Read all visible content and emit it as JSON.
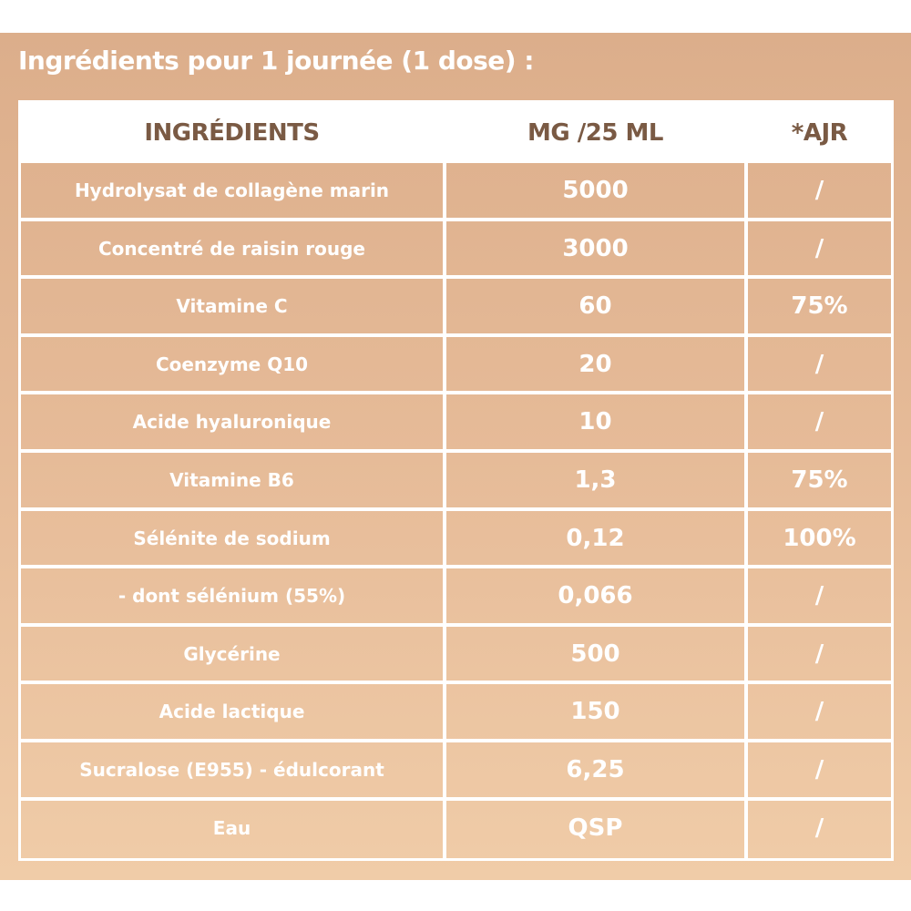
{
  "title": "Ingrédients pour 1 journée (1 dose) :",
  "columns": {
    "ingredient": "INGRÉDIENTS",
    "amount": "MG /25 ML",
    "ajr": "*AJR"
  },
  "rows": [
    {
      "ingredient": "Hydrolysat de collagène marin",
      "amount": "5000",
      "ajr": "/"
    },
    {
      "ingredient": "Concentré de raisin rouge",
      "amount": "3000",
      "ajr": "/"
    },
    {
      "ingredient": "Vitamine C",
      "amount": "60",
      "ajr": "75%"
    },
    {
      "ingredient": "Coenzyme Q10",
      "amount": "20",
      "ajr": "/"
    },
    {
      "ingredient": "Acide hyaluronique",
      "amount": "10",
      "ajr": "/"
    },
    {
      "ingredient": "Vitamine B6",
      "amount": "1,3",
      "ajr": "75%"
    },
    {
      "ingredient": "Sélénite de sodium",
      "amount": "0,12",
      "ajr": "100%"
    },
    {
      "ingredient": "- dont sélénium (55%)",
      "amount": "0,066",
      "ajr": "/"
    },
    {
      "ingredient": "Glycérine",
      "amount": "500",
      "ajr": "/"
    },
    {
      "ingredient": "Acide lactique",
      "amount": "150",
      "ajr": "/"
    },
    {
      "ingredient": "Sucralose (E955) - édulcorant",
      "amount": "6,25",
      "ajr": "/"
    },
    {
      "ingredient": "Eau",
      "amount": "QSP",
      "ajr": "/"
    }
  ],
  "colors": {
    "panel_top": "#dcae8b",
    "panel_bottom": "#f0cca8",
    "header_text": "#7a5a44",
    "cell_text": "#ffffff",
    "grid": "#ffffff"
  }
}
